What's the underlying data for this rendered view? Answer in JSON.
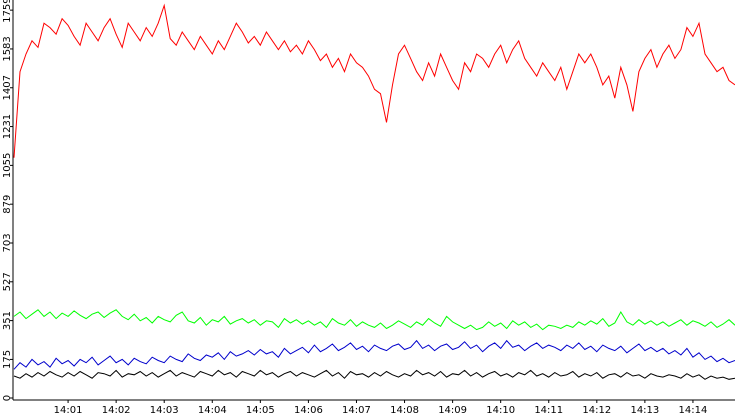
{
  "chart_data": {
    "type": "line",
    "categories": [
      null,
      null,
      null,
      null,
      null,
      null,
      null,
      null,
      null,
      "14:01",
      null,
      null,
      null,
      null,
      null,
      null,
      null,
      "14:02",
      null,
      null,
      null,
      null,
      null,
      null,
      null,
      "14:03",
      null,
      null,
      null,
      null,
      null,
      null,
      null,
      "14:04",
      null,
      null,
      null,
      null,
      null,
      null,
      null,
      "14:05",
      null,
      null,
      null,
      null,
      null,
      null,
      null,
      "14:06",
      null,
      null,
      null,
      null,
      null,
      null,
      null,
      "14:07",
      null,
      null,
      null,
      null,
      null,
      null,
      null,
      "14:08",
      null,
      null,
      null,
      null,
      null,
      null,
      null,
      "14:09",
      null,
      null,
      null,
      null,
      null,
      null,
      null,
      "14:10",
      null,
      null,
      null,
      null,
      null,
      null,
      null,
      "14:11",
      null,
      null,
      null,
      null,
      null,
      null,
      null,
      "14:12",
      null,
      null,
      null,
      null,
      null,
      null,
      null,
      "14:13",
      null,
      null,
      null,
      null,
      null,
      null,
      null,
      "14:14",
      null,
      null,
      null,
      null,
      null,
      null,
      null
    ],
    "series": [
      {
        "color": "#ff0000",
        "values": [
          1090,
          1480,
          1560,
          1620,
          1590,
          1700,
          1680,
          1650,
          1720,
          1690,
          1640,
          1600,
          1700,
          1660,
          1620,
          1680,
          1720,
          1650,
          1590,
          1700,
          1660,
          1620,
          1680,
          1640,
          1700,
          1780,
          1630,
          1600,
          1660,
          1620,
          1580,
          1640,
          1600,
          1560,
          1620,
          1580,
          1640,
          1700,
          1660,
          1610,
          1640,
          1600,
          1660,
          1620,
          1580,
          1620,
          1570,
          1600,
          1560,
          1620,
          1580,
          1530,
          1560,
          1500,
          1540,
          1480,
          1560,
          1520,
          1500,
          1460,
          1400,
          1380,
          1250,
          1420,
          1560,
          1600,
          1540,
          1480,
          1440,
          1520,
          1460,
          1560,
          1500,
          1440,
          1400,
          1520,
          1480,
          1560,
          1540,
          1500,
          1560,
          1600,
          1520,
          1580,
          1620,
          1540,
          1500,
          1460,
          1520,
          1480,
          1440,
          1500,
          1400,
          1480,
          1560,
          1520,
          1560,
          1500,
          1420,
          1460,
          1360,
          1500,
          1420,
          1300,
          1480,
          1540,
          1580,
          1500,
          1560,
          1600,
          1540,
          1580,
          1680,
          1640,
          1700,
          1560,
          1520,
          1480,
          1500,
          1440,
          1420
        ]
      },
      {
        "color": "#00ff00",
        "values": [
          370,
          390,
          360,
          380,
          400,
          370,
          390,
          360,
          385,
          370,
          395,
          375,
          360,
          380,
          390,
          365,
          385,
          400,
          370,
          355,
          380,
          350,
          365,
          340,
          370,
          355,
          345,
          375,
          390,
          350,
          340,
          365,
          330,
          355,
          345,
          370,
          335,
          350,
          360,
          340,
          355,
          330,
          350,
          345,
          320,
          360,
          340,
          355,
          335,
          350,
          330,
          345,
          320,
          360,
          340,
          330,
          355,
          325,
          345,
          330,
          320,
          340,
          315,
          330,
          350,
          335,
          320,
          345,
          330,
          360,
          340,
          325,
          370,
          345,
          330,
          315,
          330,
          310,
          320,
          345,
          325,
          340,
          315,
          350,
          330,
          345,
          320,
          335,
          310,
          330,
          325,
          315,
          330,
          320,
          345,
          330,
          350,
          335,
          360,
          325,
          340,
          390,
          345,
          330,
          355,
          335,
          350,
          330,
          345,
          325,
          340,
          355,
          330,
          350,
          340,
          325,
          345,
          320,
          335,
          355,
          330
        ]
      },
      {
        "color": "#0000cc",
        "values": [
          130,
          160,
          140,
          175,
          150,
          165,
          140,
          180,
          155,
          170,
          145,
          175,
          160,
          185,
          150,
          170,
          190,
          160,
          175,
          150,
          180,
          165,
          155,
          185,
          170,
          160,
          190,
          175,
          165,
          200,
          180,
          170,
          195,
          185,
          205,
          175,
          210,
          190,
          200,
          215,
          195,
          220,
          200,
          210,
          185,
          225,
          200,
          215,
          230,
          205,
          240,
          210,
          225,
          245,
          215,
          230,
          250,
          220,
          235,
          210,
          240,
          225,
          215,
          235,
          245,
          220,
          230,
          260,
          225,
          240,
          215,
          235,
          245,
          220,
          230,
          255,
          225,
          240,
          210,
          235,
          250,
          225,
          260,
          230,
          240,
          215,
          235,
          250,
          225,
          240,
          230,
          215,
          240,
          225,
          250,
          220,
          235,
          210,
          240,
          225,
          215,
          235,
          205,
          225,
          245,
          215,
          230,
          210,
          225,
          200,
          215,
          195,
          225,
          185,
          205,
          175,
          190,
          165,
          180,
          160,
          170
        ]
      },
      {
        "color": "#000000",
        "values": [
          100,
          90,
          110,
          95,
          115,
          100,
          120,
          105,
          95,
          115,
          100,
          120,
          105,
          90,
          115,
          110,
          100,
          125,
          95,
          110,
          105,
          120,
          100,
          115,
          95,
          110,
          125,
          100,
          115,
          105,
          95,
          120,
          110,
          100,
          125,
          105,
          115,
          95,
          120,
          110,
          100,
          125,
          105,
          115,
          95,
          110,
          120,
          100,
          115,
          105,
          95,
          110,
          125,
          100,
          115,
          90,
          120,
          105,
          110,
          95,
          115,
          100,
          120,
          105,
          95,
          110,
          100,
          125,
          105,
          115,
          100,
          120,
          95,
          110,
          105,
          125,
          100,
          115,
          95,
          110,
          120,
          100,
          110,
          95,
          115,
          105,
          125,
          100,
          110,
          95,
          115,
          100,
          105,
          120,
          95,
          110,
          100,
          115,
          90,
          105,
          110,
          95,
          115,
          100,
          105,
          90,
          110,
          100,
          95,
          105,
          100,
          90,
          110,
          95,
          105,
          85,
          100,
          90,
          95,
          85,
          90
        ]
      }
    ],
    "ylim": [
      0,
      1805
    ],
    "yticks": [
      0,
      175,
      351,
      527,
      703,
      879,
      1055,
      1231,
      1407,
      1583,
      1759
    ]
  }
}
